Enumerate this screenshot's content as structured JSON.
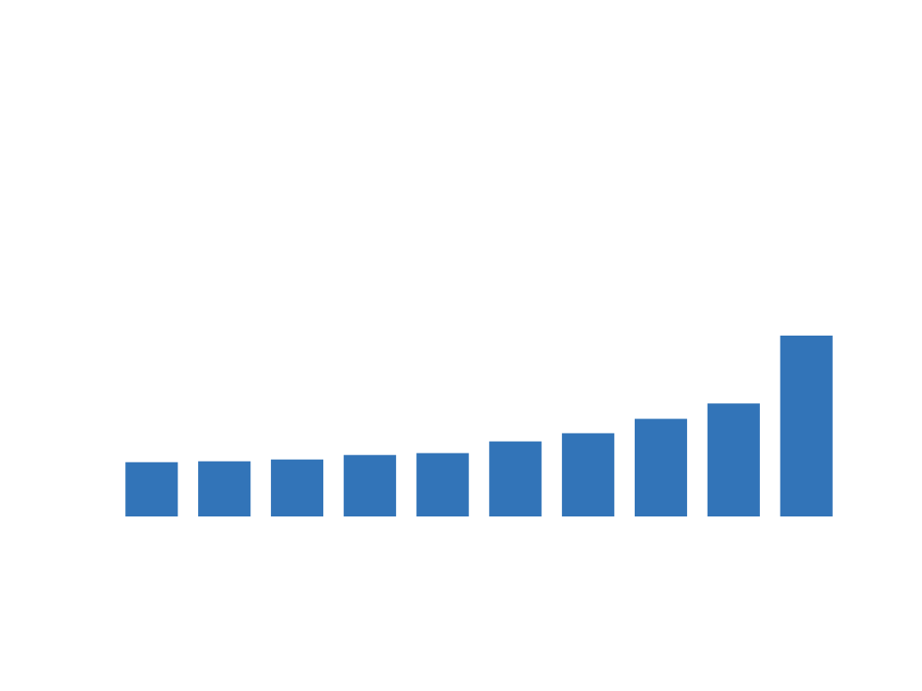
{
  "chart_data": {
    "type": "bar",
    "values": [
      3.0,
      3.05,
      3.15,
      3.4,
      3.5,
      4.15,
      4.6,
      5.4,
      6.25,
      10.0
    ],
    "ylim": [
      0,
      20
    ],
    "grid": false,
    "bar_color": "#3274b8",
    "background": "#ffffff"
  }
}
